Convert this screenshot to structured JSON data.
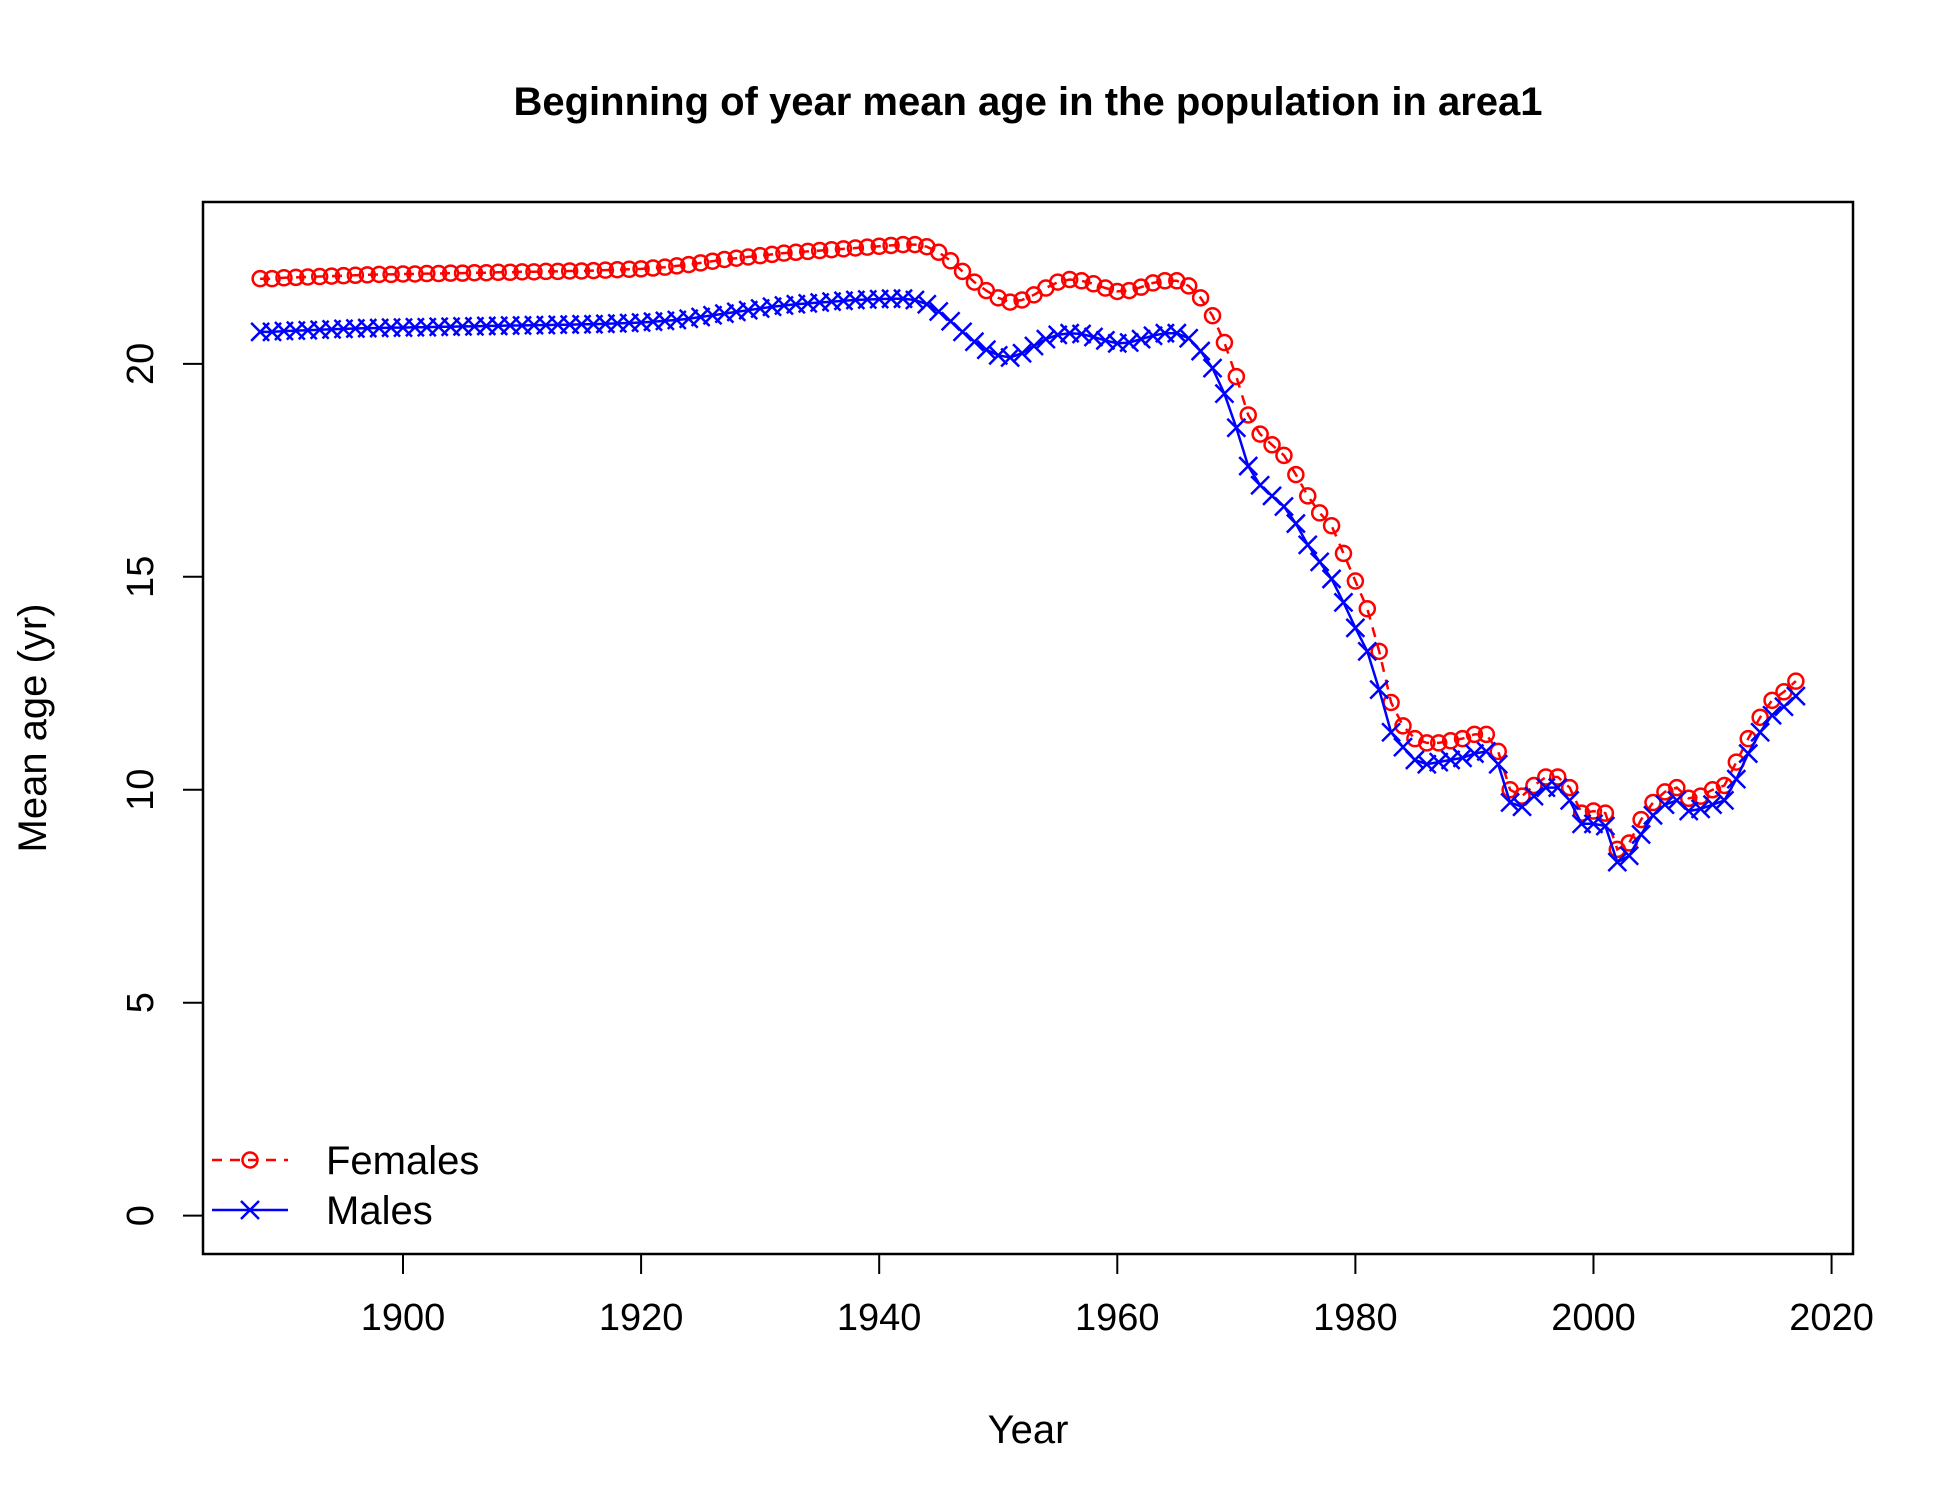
{
  "chart_data": {
    "type": "line",
    "title": "Beginning of year mean age in the population in area1",
    "xlabel": "Year",
    "ylabel": "Mean age (yr)",
    "xlim": [
      1883.2,
      2021.8
    ],
    "ylim": [
      -0.9,
      23.8
    ],
    "x_ticks": [
      1900,
      1920,
      1940,
      1960,
      1980,
      2000,
      2020
    ],
    "y_ticks": [
      0,
      5,
      10,
      15,
      20
    ],
    "grid": false,
    "legend_position": "bottom-left",
    "x": [
      1888,
      1889,
      1890,
      1891,
      1892,
      1893,
      1894,
      1895,
      1896,
      1897,
      1898,
      1899,
      1900,
      1901,
      1902,
      1903,
      1904,
      1905,
      1906,
      1907,
      1908,
      1909,
      1910,
      1911,
      1912,
      1913,
      1914,
      1915,
      1916,
      1917,
      1918,
      1919,
      1920,
      1921,
      1922,
      1923,
      1924,
      1925,
      1926,
      1927,
      1928,
      1929,
      1930,
      1931,
      1932,
      1933,
      1934,
      1935,
      1936,
      1937,
      1938,
      1939,
      1940,
      1941,
      1942,
      1943,
      1944,
      1945,
      1946,
      1947,
      1948,
      1949,
      1950,
      1951,
      1952,
      1953,
      1954,
      1955,
      1956,
      1957,
      1958,
      1959,
      1960,
      1961,
      1962,
      1963,
      1964,
      1965,
      1966,
      1967,
      1968,
      1969,
      1970,
      1971,
      1972,
      1973,
      1974,
      1975,
      1976,
      1977,
      1978,
      1979,
      1980,
      1981,
      1982,
      1983,
      1984,
      1985,
      1986,
      1987,
      1988,
      1989,
      1990,
      1991,
      1992,
      1993,
      1994,
      1995,
      1996,
      1997,
      1998,
      1999,
      2000,
      2001,
      2002,
      2003,
      2004,
      2005,
      2006,
      2007,
      2008,
      2009,
      2010,
      2011,
      2012,
      2013,
      2014,
      2015,
      2016,
      2017
    ],
    "series": [
      {
        "name": "Females",
        "color": "#ff0000",
        "marker": "circle",
        "line_style": "dashed",
        "values": [
          22.0,
          22.0,
          22.02,
          22.03,
          22.04,
          22.05,
          22.06,
          22.07,
          22.08,
          22.09,
          22.1,
          22.1,
          22.11,
          22.11,
          22.12,
          22.12,
          22.13,
          22.13,
          22.14,
          22.14,
          22.15,
          22.15,
          22.16,
          22.16,
          22.17,
          22.17,
          22.18,
          22.18,
          22.19,
          22.2,
          22.21,
          22.22,
          22.23,
          22.25,
          22.27,
          22.3,
          22.33,
          22.37,
          22.41,
          22.45,
          22.48,
          22.51,
          22.54,
          22.57,
          22.6,
          22.62,
          22.64,
          22.66,
          22.68,
          22.7,
          22.72,
          22.74,
          22.76,
          22.78,
          22.8,
          22.8,
          22.75,
          22.62,
          22.42,
          22.17,
          21.92,
          21.72,
          21.55,
          21.45,
          21.5,
          21.62,
          21.78,
          21.92,
          21.98,
          21.95,
          21.88,
          21.78,
          21.7,
          21.72,
          21.8,
          21.9,
          21.95,
          21.95,
          21.83,
          21.55,
          21.13,
          20.5,
          19.7,
          18.8,
          18.35,
          18.1,
          17.85,
          17.4,
          16.9,
          16.5,
          16.2,
          15.55,
          14.9,
          14.25,
          13.25,
          12.05,
          11.5,
          11.2,
          11.1,
          11.1,
          11.15,
          11.2,
          11.3,
          11.3,
          10.9,
          10.0,
          9.85,
          10.1,
          10.3,
          10.3,
          10.05,
          9.45,
          9.5,
          9.45,
          8.6,
          8.75,
          9.3,
          9.7,
          9.95,
          10.05,
          9.8,
          9.85,
          10.0,
          10.1,
          10.65,
          11.2,
          11.7,
          12.1,
          12.3,
          12.55
        ]
      },
      {
        "name": "Males",
        "color": "#0000ff",
        "marker": "x",
        "line_style": "solid",
        "values": [
          20.75,
          20.75,
          20.77,
          20.78,
          20.79,
          20.8,
          20.81,
          20.82,
          20.83,
          20.84,
          20.84,
          20.85,
          20.85,
          20.86,
          20.86,
          20.87,
          20.87,
          20.88,
          20.88,
          20.89,
          20.89,
          20.9,
          20.9,
          20.91,
          20.91,
          20.92,
          20.92,
          20.93,
          20.93,
          20.94,
          20.95,
          20.96,
          20.97,
          20.99,
          21.01,
          21.03,
          21.06,
          21.1,
          21.14,
          21.18,
          21.22,
          21.26,
          21.3,
          21.34,
          21.37,
          21.4,
          21.42,
          21.44,
          21.46,
          21.48,
          21.5,
          21.51,
          21.52,
          21.53,
          21.53,
          21.5,
          21.4,
          21.23,
          21.0,
          20.75,
          20.52,
          20.33,
          20.2,
          20.15,
          20.25,
          20.42,
          20.58,
          20.68,
          20.72,
          20.7,
          20.63,
          20.55,
          20.48,
          20.5,
          20.58,
          20.66,
          20.72,
          20.72,
          20.6,
          20.3,
          19.9,
          19.3,
          18.5,
          17.6,
          17.15,
          16.9,
          16.65,
          16.25,
          15.75,
          15.35,
          14.95,
          14.4,
          13.8,
          13.25,
          12.35,
          11.35,
          11.0,
          10.7,
          10.6,
          10.65,
          10.7,
          10.75,
          10.85,
          10.9,
          10.6,
          9.7,
          9.6,
          9.85,
          10.05,
          10.05,
          9.75,
          9.2,
          9.2,
          9.15,
          8.3,
          8.45,
          8.95,
          9.4,
          9.65,
          9.75,
          9.5,
          9.55,
          9.65,
          9.75,
          10.25,
          10.85,
          11.35,
          11.75,
          11.95,
          12.2
        ]
      }
    ]
  }
}
